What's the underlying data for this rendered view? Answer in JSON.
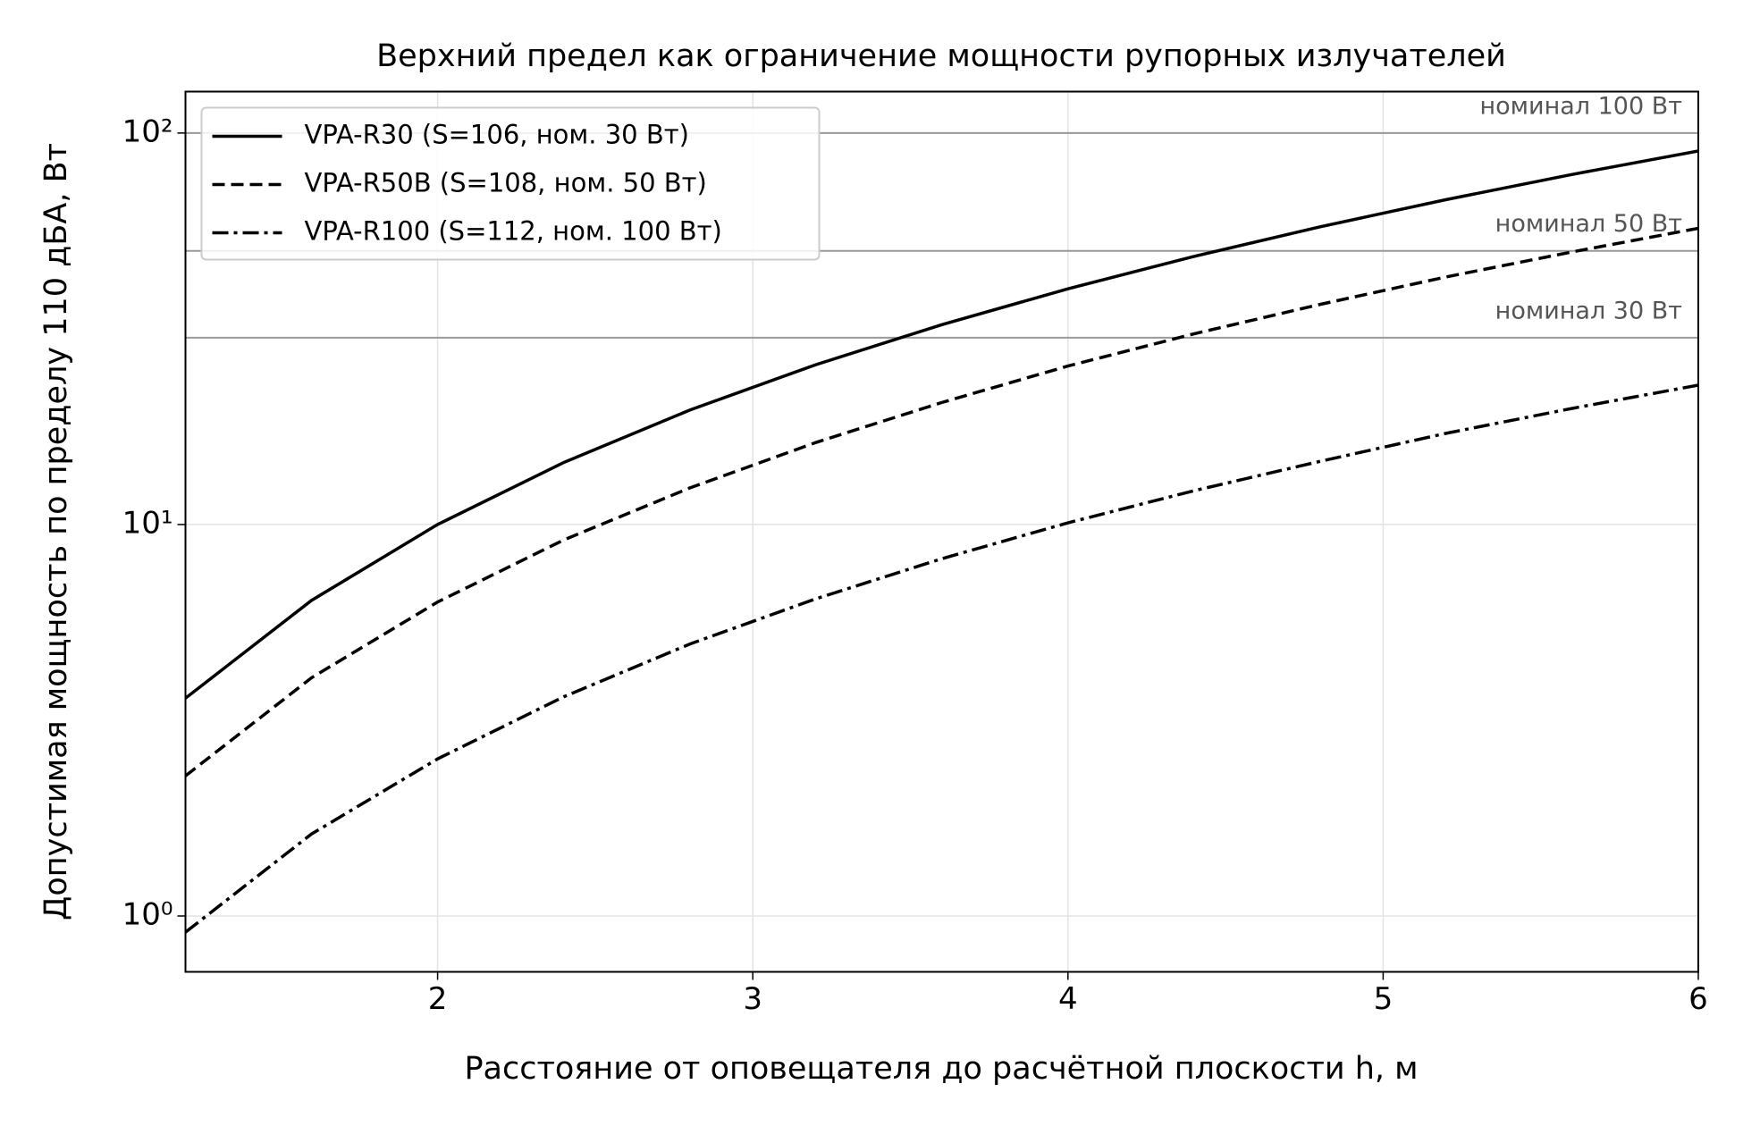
{
  "chart_data": {
    "type": "line",
    "title": "Верхний предел как ограничение мощности рупорных излучателей",
    "xlabel": "Расстояние от оповещателя до расчётной плоскости h, м",
    "ylabel": "Допустимая мощность по пределу 110 дБА, Вт",
    "x": [
      1.2,
      1.6,
      2.0,
      2.4,
      2.8,
      3.2,
      3.6,
      4.0,
      4.4,
      4.8,
      5.2,
      5.6,
      6.0
    ],
    "series": [
      {
        "name": "VPA-R30 (S=106, ном. 30 Вт)",
        "color": "#000000",
        "dash": "solid",
        "values": [
          3.6,
          6.4,
          10,
          14.4,
          19.6,
          25.6,
          32.4,
          40,
          48.4,
          57.6,
          67.6,
          78.4,
          90
        ]
      },
      {
        "name": "VPA-R50B (S=108, ном. 50 Вт)",
        "color": "#000000",
        "dash": "dashed",
        "values": [
          2.28,
          4.06,
          6.34,
          9.13,
          12.4,
          16.2,
          20.5,
          25.4,
          30.7,
          36.5,
          42.9,
          49.7,
          57.1
        ]
      },
      {
        "name": "VPA-R100 (S=112, ном. 100 Вт)",
        "color": "#000000",
        "dash": "dashdot",
        "values": [
          0.909,
          1.62,
          2.52,
          3.63,
          4.95,
          6.46,
          8.18,
          10.1,
          12.2,
          14.5,
          17.1,
          19.8,
          22.7
        ]
      }
    ],
    "reference_lines": [
      {
        "value": 100,
        "label": "номинал 100 Вт"
      },
      {
        "value": 50,
        "label": "номинал 50 Вт"
      },
      {
        "value": 30,
        "label": "номинал 30 Вт"
      }
    ],
    "xlim": [
      1.2,
      6
    ],
    "xticks": [
      2,
      3,
      4,
      5,
      6
    ],
    "ylim": [
      0.72,
      127.6
    ],
    "ylog": true,
    "yticks": [
      {
        "value": 1,
        "label": "10⁰"
      },
      {
        "value": 10,
        "label": "10¹"
      },
      {
        "value": 100,
        "label": "10²"
      }
    ],
    "grid": true,
    "legend": "upper left"
  }
}
